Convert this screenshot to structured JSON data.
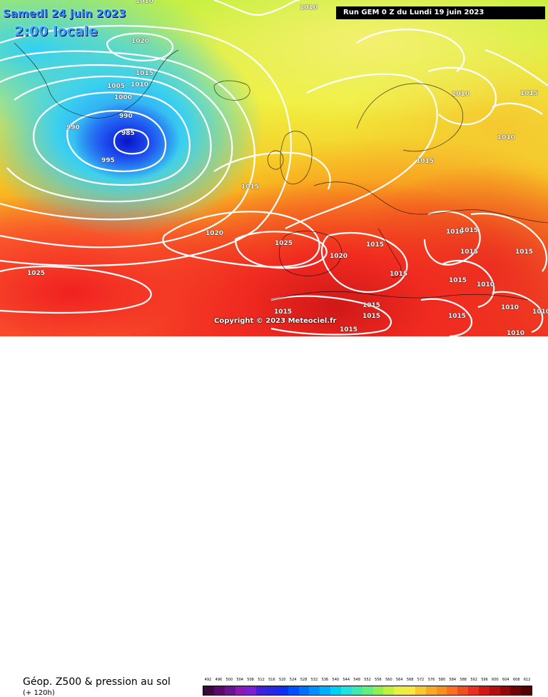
{
  "header": {
    "date": "Samedi 24 juin 2023",
    "local_time": "2:00 locale",
    "run": "Run GEM 0 Z du Lundi 19 juin 2023"
  },
  "copyright": "Copyright © 2023 Meteociel.fr",
  "legend": {
    "product": "Géop. Z500 & pression au sol",
    "lead": "(+ 120h)",
    "scale_values": [
      "492",
      "496",
      "500",
      "504",
      "508",
      "512",
      "516",
      "520",
      "524",
      "528",
      "532",
      "536",
      "540",
      "544",
      "548",
      "552",
      "556",
      "560",
      "564",
      "568",
      "572",
      "576",
      "580",
      "584",
      "588",
      "592",
      "596",
      "600",
      "604",
      "608",
      "612"
    ],
    "scale_colors": [
      "#3a0a3a",
      "#5a0a6a",
      "#6a1490",
      "#8a1ab0",
      "#7a20d0",
      "#4020d8",
      "#2828e0",
      "#1030f0",
      "#0050ff",
      "#0070ff",
      "#0090ff",
      "#00b0ff",
      "#00d0f8",
      "#20e0e0",
      "#40e8b0",
      "#60f080",
      "#90f050",
      "#c0f040",
      "#e8f040",
      "#f8e840",
      "#f8c830",
      "#f8a828",
      "#f89020",
      "#f87020",
      "#f05020",
      "#e83020",
      "#d01818",
      "#b01010",
      "#900808",
      "#700404",
      "#500000"
    ]
  },
  "isobars": [
    {
      "value": "1010",
      "pos": "top-left"
    },
    {
      "value": "1010",
      "pos": "top"
    },
    {
      "value": "1020",
      "pos": "nw"
    },
    {
      "value": "1015",
      "pos": "nw2"
    },
    {
      "value": "1005",
      "pos": "greenland"
    },
    {
      "value": "1010",
      "pos": "greenland2"
    },
    {
      "value": "1000",
      "pos": "greenland3"
    },
    {
      "value": "990",
      "pos": "low1"
    },
    {
      "value": "990",
      "pos": "low2"
    },
    {
      "value": "985",
      "pos": "low-center"
    },
    {
      "value": "995",
      "pos": "low3"
    },
    {
      "value": "1015",
      "pos": "atlantic"
    },
    {
      "value": "1020",
      "pos": "atlantic2"
    },
    {
      "value": "1025",
      "pos": "azores"
    },
    {
      "value": "1025",
      "pos": "azores2"
    },
    {
      "value": "1020",
      "pos": "iberia"
    },
    {
      "value": "1015",
      "pos": "med"
    },
    {
      "value": "1015",
      "pos": "med2"
    },
    {
      "value": "1015",
      "pos": "nafrica"
    },
    {
      "value": "1015",
      "pos": "nafrica2"
    },
    {
      "value": "1015",
      "pos": "nafrica3"
    },
    {
      "value": "1015",
      "pos": "nafrica4"
    },
    {
      "value": "1010",
      "pos": "scandinavia"
    },
    {
      "value": "1015",
      "pos": "russia"
    },
    {
      "value": "1010",
      "pos": "russia2"
    },
    {
      "value": "1015",
      "pos": "europe"
    },
    {
      "value": "1010",
      "pos": "balkans"
    },
    {
      "value": "1015",
      "pos": "balkans2"
    },
    {
      "value": "1015",
      "pos": "greece"
    },
    {
      "value": "1015",
      "pos": "turkey"
    },
    {
      "value": "1015",
      "pos": "turkey2"
    },
    {
      "value": "1010",
      "pos": "mideast"
    },
    {
      "value": "1010",
      "pos": "mideast2"
    },
    {
      "value": "1015",
      "pos": "egypt"
    },
    {
      "value": "1010",
      "pos": "arabia"
    },
    {
      "value": "1010",
      "pos": "arabia2"
    }
  ]
}
